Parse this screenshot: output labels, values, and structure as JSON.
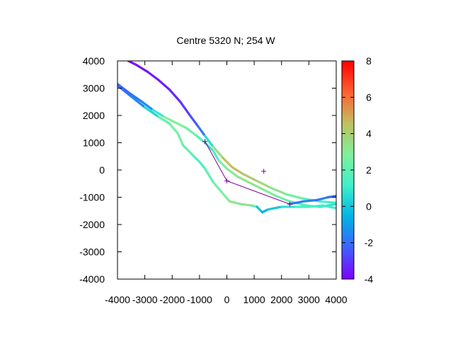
{
  "chart_data": {
    "type": "line",
    "title": "Centre 5320 N; 254  W",
    "xlabel": "",
    "ylabel": "",
    "xlim": [
      -4000,
      4000
    ],
    "ylim": [
      -4000,
      4000
    ],
    "x_ticks": [
      "-4000",
      "-3000",
      "-2000",
      "-1000",
      "0",
      "1000",
      "2000",
      "3000",
      "4000"
    ],
    "y_ticks": [
      "4000",
      "3000",
      "2000",
      "1000",
      "0",
      "-1000",
      "-2000",
      "-3000",
      "-4000"
    ],
    "colorbar": {
      "range": [
        -4,
        8
      ],
      "ticks": [
        "8",
        "6",
        "4",
        "2",
        "0",
        "-2",
        "-4"
      ],
      "palette": "rainbow",
      "colors": [
        "#7f00ff",
        "#3f60ff",
        "#00b4e4",
        "#3ff0c8",
        "#7ff09c",
        "#c0c060",
        "#ff6030",
        "#ff0000"
      ]
    },
    "grid": false,
    "legend": "none",
    "series": [
      {
        "x": [
          -3600,
          -3300,
          -2900,
          -2500,
          -2100,
          -1700,
          -1350,
          -1050,
          -800,
          -500,
          -150,
          200,
          600,
          1100,
          1600,
          2200,
          2800,
          3400,
          4000
        ],
        "y": [
          4000,
          3850,
          3600,
          3300,
          2950,
          2500,
          2000,
          1600,
          1250,
          850,
          450,
          100,
          -150,
          -400,
          -650,
          -900,
          -1050,
          -1150,
          -1200
        ],
        "z": [
          -4,
          -3.8,
          -3.6,
          -3.5,
          -3.4,
          -3.2,
          -2.8,
          -2.2,
          -1.6,
          2.8,
          4.2,
          4.8,
          4.5,
          4.0,
          3.5,
          3.0,
          2.0,
          1.5,
          1.0
        ]
      },
      {
        "x": [
          -4000,
          -3600,
          -3100,
          -2700,
          -2300,
          -1900,
          -1500,
          -1100,
          -800,
          -500,
          -300,
          0,
          400,
          900,
          1400,
          1800,
          2300,
          2900,
          3400,
          4000
        ],
        "y": [
          3150,
          2850,
          2500,
          2200,
          1950,
          1750,
          1550,
          1250,
          1000,
          700,
          350,
          50,
          -250,
          -500,
          -750,
          -950,
          -1150,
          -1300,
          -1350,
          -1250
        ],
        "z": [
          -2.6,
          -2.0,
          -1.6,
          -1.0,
          2.8,
          3.0,
          2.6,
          2.2,
          1.2,
          0.5,
          2.4,
          3.0,
          3.2,
          3.4,
          3.0,
          2.6,
          2.2,
          1.6,
          1.0,
          0.5
        ]
      },
      {
        "x": [
          -4000,
          -3500,
          -3000,
          -2500,
          -2100,
          -1800,
          -1600,
          -1200,
          -1000,
          -800,
          -500,
          -200,
          100,
          500,
          900,
          1100,
          1300,
          1500,
          2000,
          2500,
          3000,
          3500,
          4000
        ],
        "y": [
          3100,
          2700,
          2300,
          1950,
          1700,
          1350,
          900,
          500,
          300,
          50,
          -450,
          -800,
          -1150,
          -1250,
          -1300,
          -1350,
          -1550,
          -1450,
          -1350,
          -1350,
          -1350,
          -1300,
          -1400
        ],
        "z": [
          -2.2,
          -1.8,
          -1.2,
          2.0,
          2.4,
          2.6,
          2.4,
          1.6,
          1.2,
          1.6,
          2.2,
          2.6,
          3.2,
          3.4,
          3.2,
          0.4,
          -0.8,
          -0.6,
          0.6,
          1.0,
          1.4,
          1.0,
          1.2
        ]
      },
      {
        "x": [
          2300,
          2800,
          3300,
          3700,
          4000
        ],
        "y": [
          -1250,
          -1150,
          -1100,
          -1000,
          -950
        ],
        "z": [
          -2.0,
          -1.6,
          -1.6,
          -2.0,
          -2.2
        ]
      }
    ],
    "track_points": [
      {
        "x": -800,
        "y": 1050
      },
      {
        "x": 0,
        "y": -400
      },
      {
        "x": 2300,
        "y": -1250
      },
      {
        "x": 1350,
        "y": -50
      }
    ],
    "track_color": "#8000a0"
  }
}
